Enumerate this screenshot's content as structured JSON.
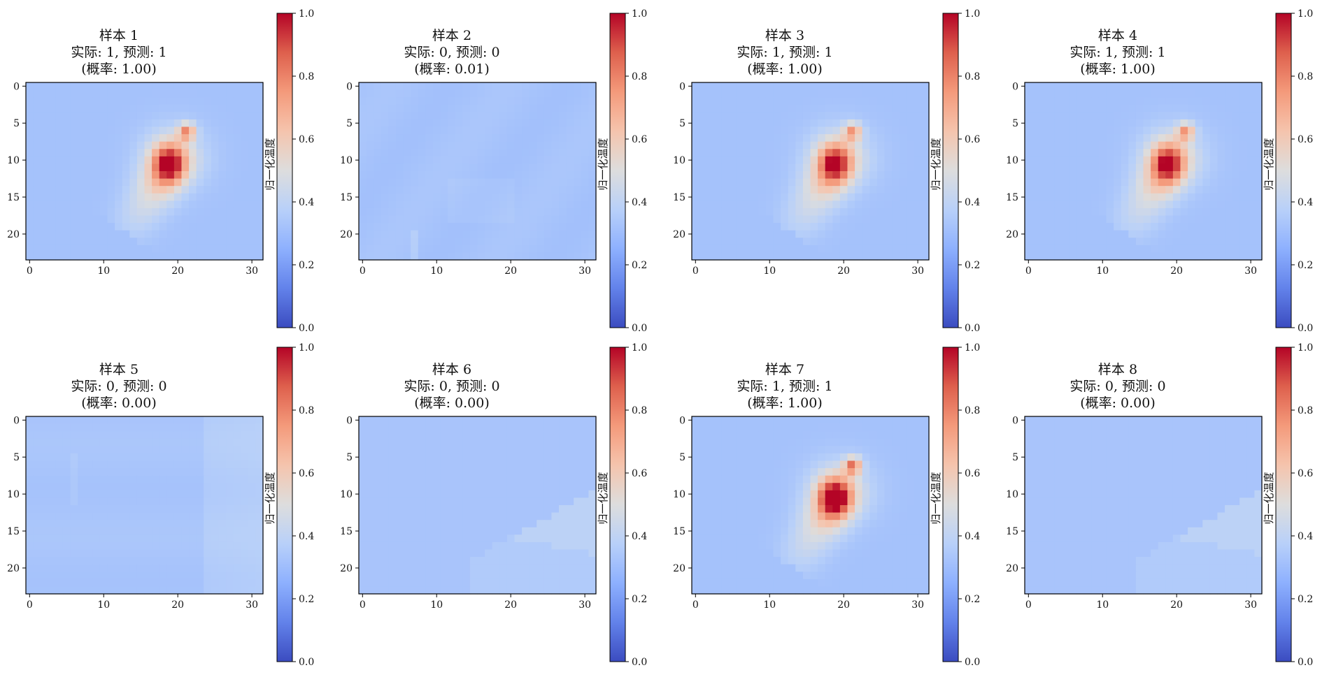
{
  "chart_data": [
    {
      "type": "heatmap",
      "title": "样本 1",
      "subtitle": "实际: 1, 预测: 1",
      "probability": "(概率: 1.00)",
      "pattern": "hot",
      "strength": 1.0,
      "actual": 1,
      "predicted": 1,
      "prob": 1.0,
      "colorbar_label": "归一化温度",
      "cbar_ticks": [
        "0.0",
        "0.2",
        "0.4",
        "0.6",
        "0.8",
        "1.0"
      ],
      "xticks": [
        "0",
        "10",
        "20",
        "30"
      ],
      "yticks": [
        "0",
        "5",
        "10",
        "15",
        "20"
      ],
      "xlim": [
        0,
        31
      ],
      "ylim": [
        23,
        0
      ],
      "vmin": 0,
      "vmax": 1,
      "colormap": "coolwarm"
    },
    {
      "type": "heatmap",
      "title": "样本 2",
      "subtitle": "实际: 0, 预测: 0",
      "probability": "(概率: 0.01)",
      "pattern": "flat",
      "strength": 0.0,
      "actual": 0,
      "predicted": 0,
      "prob": 0.01,
      "colorbar_label": "归一化温度",
      "cbar_ticks": [
        "0.0",
        "0.2",
        "0.4",
        "0.6",
        "0.8",
        "1.0"
      ],
      "xticks": [
        "0",
        "10",
        "20",
        "30"
      ],
      "yticks": [
        "0",
        "5",
        "10",
        "15",
        "20"
      ],
      "xlim": [
        0,
        31
      ],
      "ylim": [
        23,
        0
      ],
      "vmin": 0,
      "vmax": 1,
      "colormap": "coolwarm"
    },
    {
      "type": "heatmap",
      "title": "样本 3",
      "subtitle": "实际: 1, 预测: 1",
      "probability": "(概率: 1.00)",
      "pattern": "hot",
      "strength": 0.93,
      "actual": 1,
      "predicted": 1,
      "prob": 1.0,
      "colorbar_label": "归一化温度",
      "cbar_ticks": [
        "0.0",
        "0.2",
        "0.4",
        "0.6",
        "0.8",
        "1.0"
      ],
      "xticks": [
        "0",
        "10",
        "20",
        "30"
      ],
      "yticks": [
        "0",
        "5",
        "10",
        "15",
        "20"
      ],
      "xlim": [
        0,
        31
      ],
      "ylim": [
        23,
        0
      ],
      "vmin": 0,
      "vmax": 1,
      "colormap": "coolwarm"
    },
    {
      "type": "heatmap",
      "title": "样本 4",
      "subtitle": "实际: 1, 预测: 1",
      "probability": "(概率: 1.00)",
      "pattern": "hot",
      "strength": 0.93,
      "actual": 1,
      "predicted": 1,
      "prob": 1.0,
      "colorbar_label": "归一化温度",
      "cbar_ticks": [
        "0.0",
        "0.2",
        "0.4",
        "0.6",
        "0.8",
        "1.0"
      ],
      "xticks": [
        "0",
        "10",
        "20",
        "30"
      ],
      "yticks": [
        "0",
        "5",
        "10",
        "15",
        "20"
      ],
      "xlim": [
        0,
        31
      ],
      "ylim": [
        23,
        0
      ],
      "vmin": 0,
      "vmax": 1,
      "colormap": "coolwarm"
    },
    {
      "type": "heatmap",
      "title": "样本 5",
      "subtitle": "实际: 0, 预测: 0",
      "probability": "(概率: 0.00)",
      "pattern": "vertical",
      "strength": 0.0,
      "actual": 0,
      "predicted": 0,
      "prob": 0.0,
      "colorbar_label": "归一化温度",
      "cbar_ticks": [
        "0.0",
        "0.2",
        "0.4",
        "0.6",
        "0.8",
        "1.0"
      ],
      "xticks": [
        "0",
        "10",
        "20",
        "30"
      ],
      "yticks": [
        "0",
        "5",
        "10",
        "15",
        "20"
      ],
      "xlim": [
        0,
        31
      ],
      "ylim": [
        23,
        0
      ],
      "vmin": 0,
      "vmax": 1,
      "colormap": "coolwarm"
    },
    {
      "type": "heatmap",
      "title": "样本 6",
      "subtitle": "实际: 0, 预测: 0",
      "probability": "(概率: 0.00)",
      "pattern": "wedge",
      "strength": 0.0,
      "actual": 0,
      "predicted": 0,
      "prob": 0.0,
      "colorbar_label": "归一化温度",
      "cbar_ticks": [
        "0.0",
        "0.2",
        "0.4",
        "0.6",
        "0.8",
        "1.0"
      ],
      "xticks": [
        "0",
        "10",
        "20",
        "30"
      ],
      "yticks": [
        "0",
        "5",
        "10",
        "15",
        "20"
      ],
      "xlim": [
        0,
        31
      ],
      "ylim": [
        23,
        0
      ],
      "vmin": 0,
      "vmax": 1,
      "colormap": "coolwarm"
    },
    {
      "type": "heatmap",
      "title": "样本 7",
      "subtitle": "实际: 1, 预测: 1",
      "probability": "(概率: 1.00)",
      "pattern": "hot",
      "strength": 1.12,
      "actual": 1,
      "predicted": 1,
      "prob": 1.0,
      "colorbar_label": "归一化温度",
      "cbar_ticks": [
        "0.0",
        "0.2",
        "0.4",
        "0.6",
        "0.8",
        "1.0"
      ],
      "xticks": [
        "0",
        "10",
        "20",
        "30"
      ],
      "yticks": [
        "0",
        "5",
        "10",
        "15",
        "20"
      ],
      "xlim": [
        0,
        31
      ],
      "ylim": [
        23,
        0
      ],
      "vmin": 0,
      "vmax": 1,
      "colormap": "coolwarm"
    },
    {
      "type": "heatmap",
      "title": "样本 8",
      "subtitle": "实际: 0, 预测: 0",
      "probability": "(概率: 0.00)",
      "pattern": "wedge",
      "strength": 0.0,
      "actual": 0,
      "predicted": 0,
      "prob": 0.0,
      "colorbar_label": "归一化温度",
      "cbar_ticks": [
        "0.0",
        "0.2",
        "0.4",
        "0.6",
        "0.8",
        "1.0"
      ],
      "xticks": [
        "0",
        "10",
        "20",
        "30"
      ],
      "yticks": [
        "0",
        "5",
        "10",
        "15",
        "20"
      ],
      "xlim": [
        0,
        31
      ],
      "ylim": [
        23,
        0
      ],
      "vmin": 0,
      "vmax": 1,
      "colormap": "coolwarm"
    }
  ]
}
